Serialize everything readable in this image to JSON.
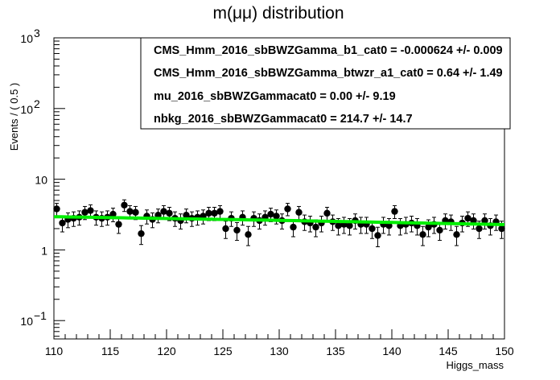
{
  "chart_data": {
    "type": "scatter",
    "title": "m(μμ) distribution",
    "xlabel": "Higgs_mass",
    "ylabel": "Events / ( 0.5 )",
    "xlim": [
      110,
      150
    ],
    "ylim": [
      0.055,
      1000
    ],
    "y_scale": "log",
    "grid": false,
    "x_ticks": [
      "110",
      "115",
      "120",
      "125",
      "130",
      "135",
      "140",
      "145",
      "150"
    ],
    "y_ticks": [
      {
        "value": 0.1,
        "base": "10",
        "exp": "−1"
      },
      {
        "value": 1,
        "label": "1"
      },
      {
        "value": 10,
        "label": "10"
      },
      {
        "value": 100,
        "base": "10",
        "exp": "2"
      },
      {
        "value": 1000,
        "base": "10",
        "exp": "3"
      }
    ],
    "legend_position": "top-right",
    "legend": [
      "CMS_Hmm_2016_sbBWZGamma_b1_cat0 = -0.000624 +/- 0.009",
      "CMS_Hmm_2016_sbBWZGamma_btwzr_a1_cat0 =  0.64 +/- 1.49",
      "mu_2016_sbBWZGammacat0 =  0.00 +/- 9.19",
      "nbkg_2016_sbBWZGammacat0 =  214.7 +/- 14.7"
    ],
    "series": [
      {
        "kind": "points",
        "color": "#000000",
        "x": [
          110.25,
          110.75,
          111.25,
          111.75,
          112.25,
          112.75,
          113.25,
          113.75,
          114.25,
          114.75,
          115.25,
          115.75,
          116.25,
          116.75,
          117.25,
          117.75,
          118.25,
          118.75,
          119.25,
          119.75,
          120.25,
          120.75,
          121.25,
          121.75,
          122.25,
          122.75,
          123.25,
          123.75,
          124.25,
          124.75,
          125.25,
          125.75,
          126.25,
          126.75,
          127.25,
          127.75,
          128.25,
          128.75,
          129.25,
          129.75,
          130.25,
          130.75,
          131.25,
          131.75,
          132.25,
          132.75,
          133.25,
          133.75,
          134.25,
          134.75,
          135.25,
          135.75,
          136.25,
          136.75,
          137.25,
          137.75,
          138.25,
          138.75,
          139.25,
          139.75,
          140.25,
          140.75,
          141.25,
          141.75,
          142.25,
          142.75,
          143.25,
          143.75,
          144.25,
          144.75,
          145.25,
          145.75,
          146.25,
          146.75,
          147.25,
          147.75,
          148.25,
          148.75,
          149.25,
          149.75
        ],
        "y": [
          3.8,
          2.4,
          2.7,
          2.8,
          2.9,
          3.4,
          3.6,
          2.9,
          2.8,
          2.9,
          3.2,
          2.3,
          4.3,
          3.5,
          3.4,
          1.7,
          3.0,
          2.7,
          3.1,
          3.5,
          3.3,
          2.8,
          2.6,
          3.1,
          2.8,
          2.9,
          3.0,
          3.3,
          3.3,
          3.5,
          2.0,
          2.8,
          1.9,
          2.9,
          1.65,
          2.8,
          2.6,
          2.9,
          3.2,
          3.0,
          2.6,
          3.8,
          2.1,
          3.4,
          2.5,
          2.4,
          2.1,
          2.4,
          3.3,
          2.5,
          2.2,
          2.3,
          2.2,
          2.6,
          2.3,
          2.3,
          2.0,
          1.6,
          2.3,
          2.2,
          3.5,
          2.2,
          2.3,
          2.4,
          2.2,
          1.65,
          2.1,
          2.3,
          1.9,
          2.6,
          2.5,
          1.65,
          2.4,
          2.8,
          2.6,
          2.0,
          2.6,
          2.2,
          2.5,
          2.0
        ]
      },
      {
        "kind": "fit",
        "color": "#00ee00",
        "x": [
          110,
          130,
          150
        ],
        "y": [
          2.95,
          2.62,
          2.28
        ]
      }
    ]
  }
}
